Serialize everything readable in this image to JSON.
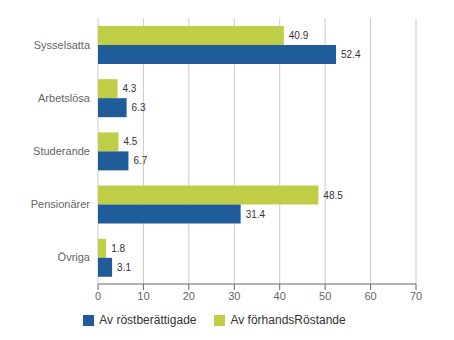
{
  "chart_data": {
    "type": "bar",
    "orientation": "horizontal",
    "categories": [
      "Sysselsatta",
      "Arbetslösa",
      "Studerande",
      "Pensionärer",
      "Övriga"
    ],
    "series": [
      {
        "name": "Av röstberättigade",
        "color": "#1F5C99",
        "values": [
          52.4,
          6.3,
          6.7,
          31.4,
          3.1
        ]
      },
      {
        "name": "Av förhandsRöstande",
        "color": "#BFCE44",
        "values": [
          40.9,
          4.3,
          4.5,
          48.5,
          1.8
        ]
      }
    ],
    "xlim": [
      0,
      70
    ],
    "xticks": [
      0,
      10,
      20,
      30,
      40,
      50,
      60,
      70
    ],
    "grid": true,
    "data_labels": true,
    "legend": "bottom"
  }
}
